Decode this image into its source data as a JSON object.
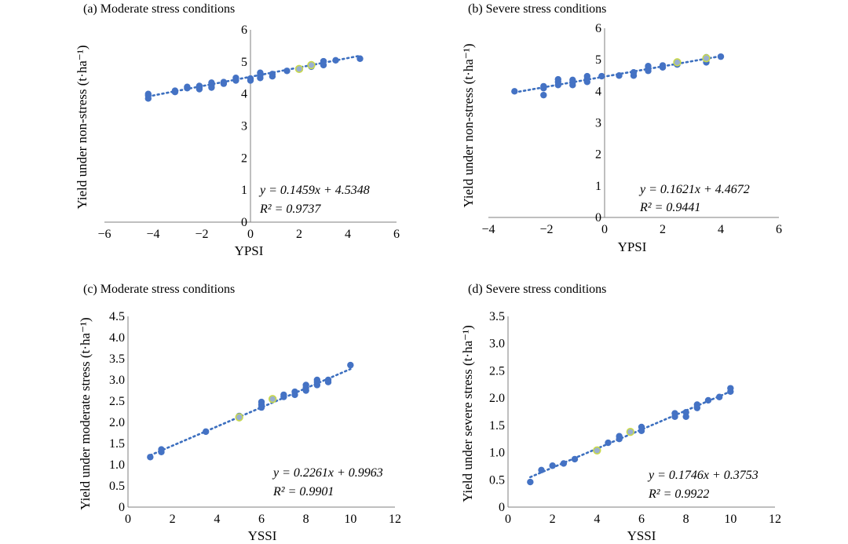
{
  "chart_data": [
    {
      "type": "scatter",
      "title": "(a) Moderate stress conditions",
      "xlabel": "YPSI",
      "ylabel": "Yield under non-stress (t·ha⁻¹)",
      "xlim": [
        -6,
        6
      ],
      "ylim": [
        0,
        6
      ],
      "xticks": [
        "−6",
        "−4",
        "−2",
        "0",
        "2",
        "4",
        "6"
      ],
      "yticks": [
        "0",
        "1",
        "2",
        "3",
        "4",
        "5",
        "6"
      ],
      "grid": false,
      "trendline": {
        "slope": 0.1459,
        "intercept": 4.5348,
        "x_range": [
          -4.2,
          4.5
        ]
      },
      "equation": "y = 0.1459x + 4.5348",
      "r2": "R² = 0.9737",
      "points": [
        [
          -4.2,
          3.86
        ],
        [
          -4.2,
          3.95
        ],
        [
          -4.2,
          4.0
        ],
        [
          -3.1,
          4.06
        ],
        [
          -3.1,
          4.1
        ],
        [
          -2.6,
          4.18
        ],
        [
          -2.6,
          4.22
        ],
        [
          -2.1,
          4.15
        ],
        [
          -2.1,
          4.2
        ],
        [
          -2.1,
          4.25
        ],
        [
          -1.6,
          4.2
        ],
        [
          -1.6,
          4.28
        ],
        [
          -1.6,
          4.35
        ],
        [
          -1.1,
          4.32
        ],
        [
          -1.1,
          4.37
        ],
        [
          -0.6,
          4.42
        ],
        [
          -0.6,
          4.5
        ],
        [
          0,
          4.42
        ],
        [
          0,
          4.48
        ],
        [
          0.4,
          4.5
        ],
        [
          0.4,
          4.58
        ],
        [
          0.4,
          4.66
        ],
        [
          0.9,
          4.55
        ],
        [
          0.9,
          4.62
        ],
        [
          1.5,
          4.72
        ],
        [
          2.0,
          4.78
        ],
        [
          2.5,
          4.85
        ],
        [
          2.5,
          4.92
        ],
        [
          3.0,
          4.9
        ],
        [
          3.0,
          5.02
        ],
        [
          3.5,
          5.05
        ],
        [
          4.5,
          5.1
        ]
      ],
      "highlight_points": [
        [
          2.0,
          4.78
        ],
        [
          2.5,
          4.9
        ]
      ]
    },
    {
      "type": "scatter",
      "title": "(b) Severe stress conditions",
      "xlabel": "YPSI",
      "ylabel": "Yield under non-stress (t·ha⁻¹)",
      "xlim": [
        -4,
        6
      ],
      "ylim": [
        0,
        6
      ],
      "xticks": [
        "−4",
        "−2",
        "0",
        "2",
        "4",
        "6"
      ],
      "yticks": [
        "0",
        "1",
        "2",
        "3",
        "4",
        "5",
        "6"
      ],
      "grid": false,
      "trendline": {
        "slope": 0.1621,
        "intercept": 4.4672,
        "x_range": [
          -3.1,
          4.0
        ]
      },
      "equation": "y = 0.1621x + 4.4672",
      "r2": "R² = 0.9441",
      "points": [
        [
          -3.1,
          4.0
        ],
        [
          -2.1,
          3.88
        ],
        [
          -2.1,
          4.1
        ],
        [
          -2.1,
          4.16
        ],
        [
          -1.6,
          4.2
        ],
        [
          -1.6,
          4.3
        ],
        [
          -1.6,
          4.38
        ],
        [
          -1.1,
          4.2
        ],
        [
          -1.1,
          4.28
        ],
        [
          -1.1,
          4.36
        ],
        [
          -0.6,
          4.3
        ],
        [
          -0.6,
          4.4
        ],
        [
          -0.6,
          4.48
        ],
        [
          -0.1,
          4.48
        ],
        [
          0.5,
          4.5
        ],
        [
          1.0,
          4.5
        ],
        [
          1.0,
          4.6
        ],
        [
          1.5,
          4.65
        ],
        [
          1.5,
          4.72
        ],
        [
          1.5,
          4.8
        ],
        [
          2.0,
          4.76
        ],
        [
          2.0,
          4.82
        ],
        [
          2.5,
          4.85
        ],
        [
          2.5,
          4.92
        ],
        [
          3.5,
          4.92
        ],
        [
          3.5,
          5.02
        ],
        [
          3.5,
          5.08
        ],
        [
          4.0,
          5.1
        ]
      ],
      "highlight_points": [
        [
          2.5,
          4.92
        ],
        [
          3.5,
          5.05
        ]
      ]
    },
    {
      "type": "scatter",
      "title": "(c) Moderate stress conditions",
      "xlabel": "YSSI",
      "ylabel": "Yield under moderate stress (t·ha⁻¹)",
      "xlim": [
        0,
        12
      ],
      "ylim": [
        0,
        4.5
      ],
      "xticks": [
        "0",
        "2",
        "4",
        "6",
        "8",
        "10",
        "12"
      ],
      "yticks": [
        "0",
        "0.5",
        "1.0",
        "1.5",
        "2.0",
        "2.5",
        "3.0",
        "3.5",
        "4.0",
        "4.5"
      ],
      "grid": false,
      "trendline": {
        "slope": 0.2261,
        "intercept": 0.9963,
        "x_range": [
          1.0,
          10.0
        ]
      },
      "equation": "y = 0.2261x + 0.9963",
      "r2": "R² = 0.9901",
      "points": [
        [
          1.0,
          1.18
        ],
        [
          1.5,
          1.3
        ],
        [
          1.5,
          1.36
        ],
        [
          3.5,
          1.78
        ],
        [
          5.0,
          2.1
        ],
        [
          5.0,
          2.15
        ],
        [
          6.0,
          2.35
        ],
        [
          6.0,
          2.42
        ],
        [
          6.0,
          2.48
        ],
        [
          6.5,
          2.55
        ],
        [
          7.0,
          2.6
        ],
        [
          7.0,
          2.65
        ],
        [
          7.5,
          2.65
        ],
        [
          7.5,
          2.72
        ],
        [
          8.0,
          2.75
        ],
        [
          8.0,
          2.82
        ],
        [
          8.0,
          2.88
        ],
        [
          8.5,
          2.88
        ],
        [
          8.5,
          2.95
        ],
        [
          8.5,
          3.0
        ],
        [
          9.0,
          2.95
        ],
        [
          9.0,
          3.0
        ],
        [
          10.0,
          3.35
        ]
      ],
      "highlight_points": [
        [
          5.0,
          2.12
        ],
        [
          6.5,
          2.55
        ]
      ]
    },
    {
      "type": "scatter",
      "title": "(d) Severe stress conditions",
      "xlabel": "YSSI",
      "ylabel": "Yield under severe stress (t·ha⁻¹)",
      "xlim": [
        0,
        12
      ],
      "ylim": [
        0,
        3.5
      ],
      "xticks": [
        "0",
        "2",
        "4",
        "6",
        "8",
        "10",
        "12"
      ],
      "yticks": [
        "0",
        "0.5",
        "1.0",
        "1.5",
        "2.0",
        "2.5",
        "3.0",
        "3.5"
      ],
      "grid": false,
      "trendline": {
        "slope": 0.1746,
        "intercept": 0.3753,
        "x_range": [
          1.0,
          10.0
        ]
      },
      "equation": "y = 0.1746x + 0.3753",
      "r2": "R² = 0.9922",
      "points": [
        [
          1.0,
          0.46
        ],
        [
          1.5,
          0.68
        ],
        [
          2.0,
          0.76
        ],
        [
          2.5,
          0.8
        ],
        [
          3.0,
          0.88
        ],
        [
          4.0,
          1.04
        ],
        [
          4.5,
          1.18
        ],
        [
          5.0,
          1.25
        ],
        [
          5.0,
          1.3
        ],
        [
          5.5,
          1.38
        ],
        [
          6.0,
          1.4
        ],
        [
          6.0,
          1.47
        ],
        [
          7.5,
          1.66
        ],
        [
          7.5,
          1.72
        ],
        [
          8.0,
          1.66
        ],
        [
          8.0,
          1.74
        ],
        [
          8.5,
          1.82
        ],
        [
          8.5,
          1.88
        ],
        [
          9.0,
          1.96
        ],
        [
          9.5,
          2.02
        ],
        [
          10.0,
          2.12
        ],
        [
          10.0,
          2.18
        ]
      ],
      "highlight_points": [
        [
          4.0,
          1.04
        ],
        [
          5.5,
          1.38
        ]
      ]
    }
  ],
  "colors": {
    "marker": "#4472c4",
    "trendline": "#3c6fbf",
    "highlight_ring": "#c9d94a",
    "axis": "#7f7f7f"
  }
}
